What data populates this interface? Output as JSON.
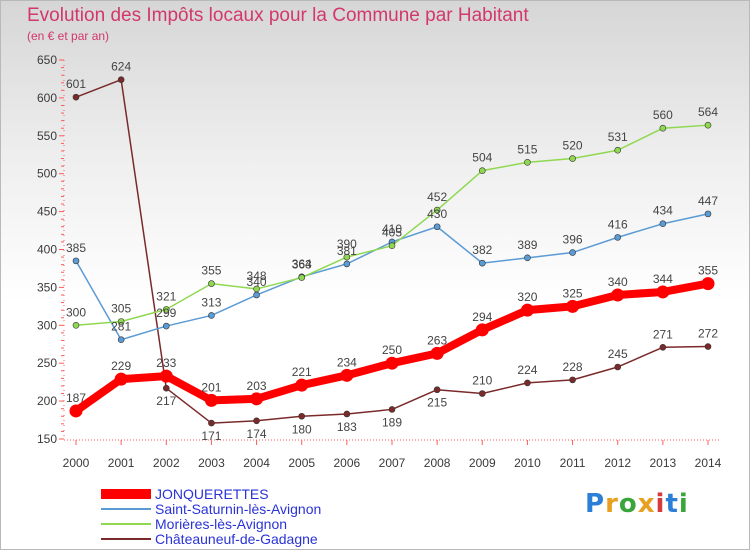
{
  "title": "Evolution des Impôts locaux pour la Commune par Habitant",
  "subtitle": "(en € et par an)",
  "logo": {
    "text": "Proxiti",
    "colors": [
      "#2c7fd6",
      "#e8a020",
      "#3aa53a",
      "#e8a020",
      "#d63a3a",
      "#2c7fd6",
      "#3aa53a"
    ]
  },
  "chart_data": {
    "type": "line",
    "x": [
      2000,
      2001,
      2002,
      2003,
      2004,
      2005,
      2006,
      2007,
      2008,
      2009,
      2010,
      2011,
      2012,
      2013,
      2014
    ],
    "ylim": [
      150,
      650
    ],
    "yticks": [
      150,
      200,
      250,
      300,
      350,
      400,
      450,
      500,
      550,
      600,
      650
    ],
    "grid": false,
    "legend_position": "bottom-left",
    "series": [
      {
        "name": "JONQUERETTES",
        "color": "#ff0000",
        "width": 8,
        "values": [
          187,
          229,
          233,
          201,
          203,
          221,
          234,
          250,
          263,
          294,
          320,
          325,
          340,
          344,
          355
        ]
      },
      {
        "name": "Saint-Saturnin-lès-Avignon",
        "color": "#5b9bd5",
        "width": 1.5,
        "values": [
          385,
          281,
          299,
          313,
          340,
          364,
          381,
          410,
          430,
          382,
          389,
          396,
          416,
          434,
          447
        ]
      },
      {
        "name": "Morières-lès-Avignon",
        "color": "#8fd850",
        "width": 1.5,
        "values": [
          300,
          305,
          321,
          355,
          348,
          363,
          390,
          405,
          452,
          504,
          515,
          520,
          531,
          560,
          564
        ]
      },
      {
        "name": "Châteauneuf-de-Gadagne",
        "color": "#7a2a2a",
        "width": 1.5,
        "values": [
          601,
          624,
          217,
          171,
          174,
          180,
          183,
          189,
          215,
          210,
          224,
          228,
          245,
          271,
          272
        ]
      }
    ]
  }
}
